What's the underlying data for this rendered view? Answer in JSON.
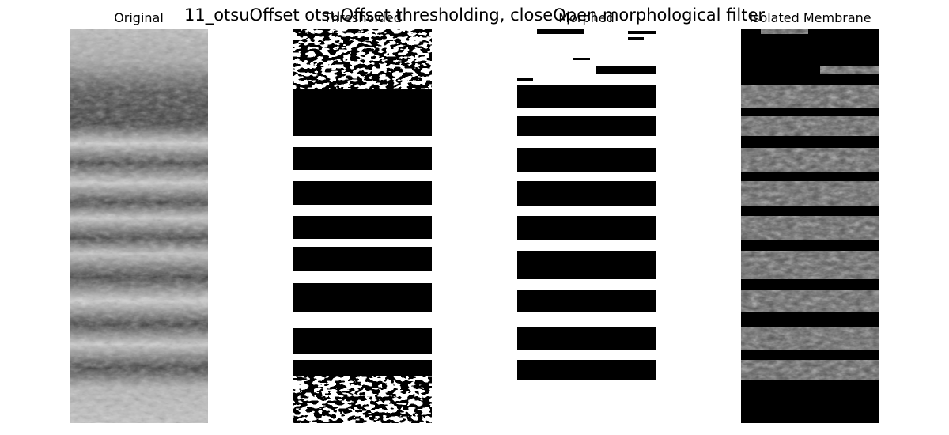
{
  "figure": {
    "suptitle": "11_otsuOffset otsuOffset thresholding, closeOpen morphological filter"
  },
  "panels": [
    {
      "title": "Original"
    },
    {
      "title": "Thresholded"
    },
    {
      "title": "Morphed"
    },
    {
      "title": "Isolated Membrane"
    }
  ],
  "colors": {
    "background": "#ffffff",
    "membrane_black": "#000000",
    "lipid_white": "#ffffff"
  }
}
